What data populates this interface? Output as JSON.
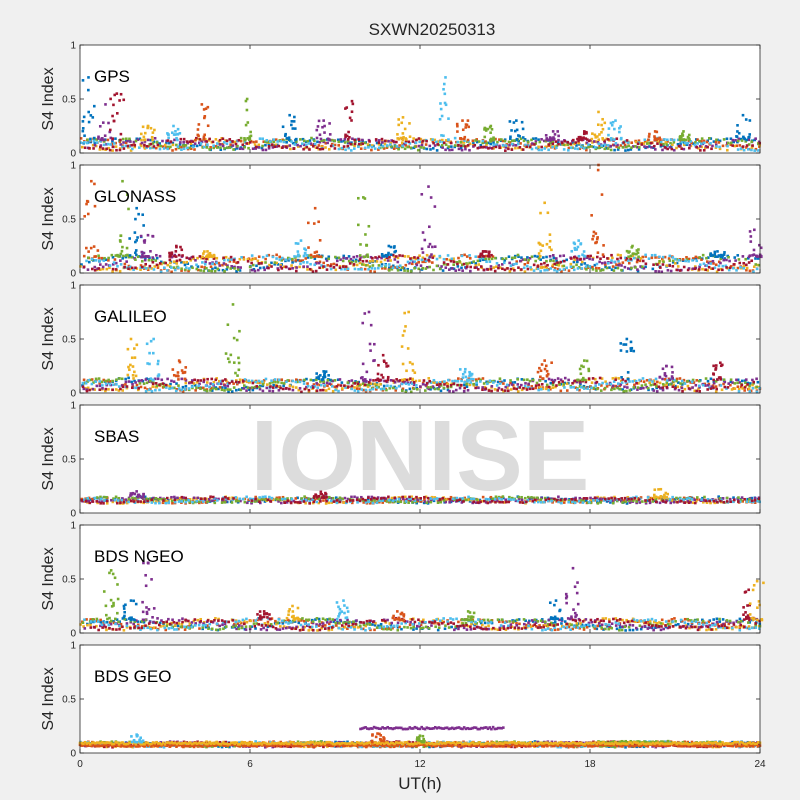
{
  "figure": {
    "title": "SXWN20250313",
    "watermark": "IONISE",
    "xlabel": "UT(h)",
    "xticks": [
      0,
      6,
      12,
      18,
      24
    ],
    "xlim": [
      0,
      24
    ]
  },
  "colors": {
    "series": [
      "#0072BD",
      "#D95319",
      "#EDB120",
      "#7E2F8E",
      "#77AC30",
      "#4DBEEE",
      "#A2142F"
    ],
    "axes_bg": "#ffffff",
    "figure_bg": "#f0f0f0"
  },
  "chart_data": [
    {
      "type": "scatter",
      "label": "GPS",
      "ylabel": "S4 Index",
      "ylim": [
        0,
        1
      ],
      "yticks": [
        0,
        0.5,
        1
      ],
      "base": [
        0.04,
        0.12
      ],
      "noise": 0.04,
      "spikes": [
        {
          "x": 0.3,
          "peak": 0.7
        },
        {
          "x": 0.9,
          "peak": 0.45
        },
        {
          "x": 1.3,
          "peak": 0.55
        },
        {
          "x": 2.4,
          "peak": 0.25
        },
        {
          "x": 3.3,
          "peak": 0.25
        },
        {
          "x": 4.3,
          "peak": 0.45
        },
        {
          "x": 5.9,
          "peak": 0.5
        },
        {
          "x": 7.4,
          "peak": 0.35
        },
        {
          "x": 8.6,
          "peak": 0.3
        },
        {
          "x": 9.6,
          "peak": 0.48
        },
        {
          "x": 11.4,
          "peak": 0.33
        },
        {
          "x": 12.9,
          "peak": 0.7
        },
        {
          "x": 13.5,
          "peak": 0.3
        },
        {
          "x": 14.5,
          "peak": 0.25
        },
        {
          "x": 15.4,
          "peak": 0.3
        },
        {
          "x": 16.7,
          "peak": 0.2
        },
        {
          "x": 17.8,
          "peak": 0.2
        },
        {
          "x": 18.3,
          "peak": 0.38
        },
        {
          "x": 18.9,
          "peak": 0.3
        },
        {
          "x": 20.3,
          "peak": 0.2
        },
        {
          "x": 21.3,
          "peak": 0.2
        },
        {
          "x": 23.4,
          "peak": 0.35
        }
      ]
    },
    {
      "type": "scatter",
      "label": "GLONASS",
      "ylabel": "S4 Index",
      "ylim": [
        0,
        1
      ],
      "yticks": [
        0,
        0.5,
        1
      ],
      "base": [
        0.03,
        0.15
      ],
      "noise": 0.04,
      "spikes": [
        {
          "x": 0.4,
          "peak": 0.85
        },
        {
          "x": 1.5,
          "peak": 0.85
        },
        {
          "x": 2.0,
          "peak": 0.6
        },
        {
          "x": 2.4,
          "peak": 0.35
        },
        {
          "x": 3.4,
          "peak": 0.25
        },
        {
          "x": 4.5,
          "peak": 0.2
        },
        {
          "x": 7.8,
          "peak": 0.3
        },
        {
          "x": 8.3,
          "peak": 0.6
        },
        {
          "x": 10.0,
          "peak": 0.7
        },
        {
          "x": 10.9,
          "peak": 0.25
        },
        {
          "x": 12.3,
          "peak": 0.8
        },
        {
          "x": 14.3,
          "peak": 0.2
        },
        {
          "x": 16.4,
          "peak": 0.65
        },
        {
          "x": 17.6,
          "peak": 0.3
        },
        {
          "x": 18.3,
          "peak": 1.0
        },
        {
          "x": 19.5,
          "peak": 0.25
        },
        {
          "x": 22.5,
          "peak": 0.2
        },
        {
          "x": 23.8,
          "peak": 0.4
        }
      ]
    },
    {
      "type": "scatter",
      "label": "GALILEO",
      "ylabel": "S4 Index",
      "ylim": [
        0,
        1
      ],
      "yticks": [
        0,
        0.5,
        1
      ],
      "base": [
        0.03,
        0.12
      ],
      "noise": 0.04,
      "spikes": [
        {
          "x": 1.8,
          "peak": 0.5
        },
        {
          "x": 2.6,
          "peak": 0.5
        },
        {
          "x": 3.5,
          "peak": 0.3
        },
        {
          "x": 5.4,
          "peak": 0.82
        },
        {
          "x": 8.6,
          "peak": 0.2
        },
        {
          "x": 10.2,
          "peak": 0.75
        },
        {
          "x": 10.7,
          "peak": 0.35
        },
        {
          "x": 11.6,
          "peak": 0.75
        },
        {
          "x": 13.6,
          "peak": 0.22
        },
        {
          "x": 16.4,
          "peak": 0.3
        },
        {
          "x": 17.8,
          "peak": 0.3
        },
        {
          "x": 19.3,
          "peak": 0.5
        },
        {
          "x": 20.7,
          "peak": 0.25
        },
        {
          "x": 22.6,
          "peak": 0.28
        }
      ]
    },
    {
      "type": "scatter",
      "label": "SBAS",
      "ylabel": "S4 Index",
      "ylim": [
        0,
        1
      ],
      "yticks": [
        0,
        0.5,
        1
      ],
      "base": [
        0.1,
        0.14
      ],
      "noise": 0.025,
      "spikes": [
        {
          "x": 2.0,
          "peak": 0.2
        },
        {
          "x": 8.5,
          "peak": 0.2
        },
        {
          "x": 20.5,
          "peak": 0.22
        }
      ]
    },
    {
      "type": "scatter",
      "label": "BDS NGEO",
      "ylabel": "S4 Index",
      "ylim": [
        0,
        1
      ],
      "yticks": [
        0,
        0.5,
        1
      ],
      "base": [
        0.04,
        0.12
      ],
      "noise": 0.035,
      "spikes": [
        {
          "x": 1.1,
          "peak": 0.58
        },
        {
          "x": 1.8,
          "peak": 0.3
        },
        {
          "x": 2.4,
          "peak": 0.65
        },
        {
          "x": 6.5,
          "peak": 0.2
        },
        {
          "x": 7.5,
          "peak": 0.25
        },
        {
          "x": 9.3,
          "peak": 0.3
        },
        {
          "x": 11.2,
          "peak": 0.2
        },
        {
          "x": 13.7,
          "peak": 0.2
        },
        {
          "x": 16.8,
          "peak": 0.3
        },
        {
          "x": 17.4,
          "peak": 0.6
        },
        {
          "x": 23.6,
          "peak": 0.4
        },
        {
          "x": 23.9,
          "peak": 0.48
        }
      ]
    },
    {
      "type": "scatter",
      "label": "BDS GEO",
      "ylabel": "S4 Index",
      "ylim": [
        0,
        1
      ],
      "yticks": [
        0,
        0.5,
        1
      ],
      "base": [
        0.06,
        0.1
      ],
      "noise": 0.015,
      "spikes": [
        {
          "x": 2.0,
          "peak": 0.17
        },
        {
          "x": 10.5,
          "peak": 0.18
        },
        {
          "x": 12.0,
          "peak": 0.16
        }
      ],
      "bands": [
        {
          "x0": 9.9,
          "x1": 15.0,
          "y": 0.23,
          "color": "#7E2F8E"
        },
        {
          "x0": 18.3,
          "x1": 20.8,
          "y": 0.1,
          "color": "#77AC30"
        },
        {
          "x0": 0.0,
          "x1": 24.0,
          "y": 0.07,
          "color": "#D95319"
        },
        {
          "x0": 0.0,
          "x1": 24.0,
          "y": 0.09,
          "color": "#EDB120"
        }
      ]
    }
  ]
}
